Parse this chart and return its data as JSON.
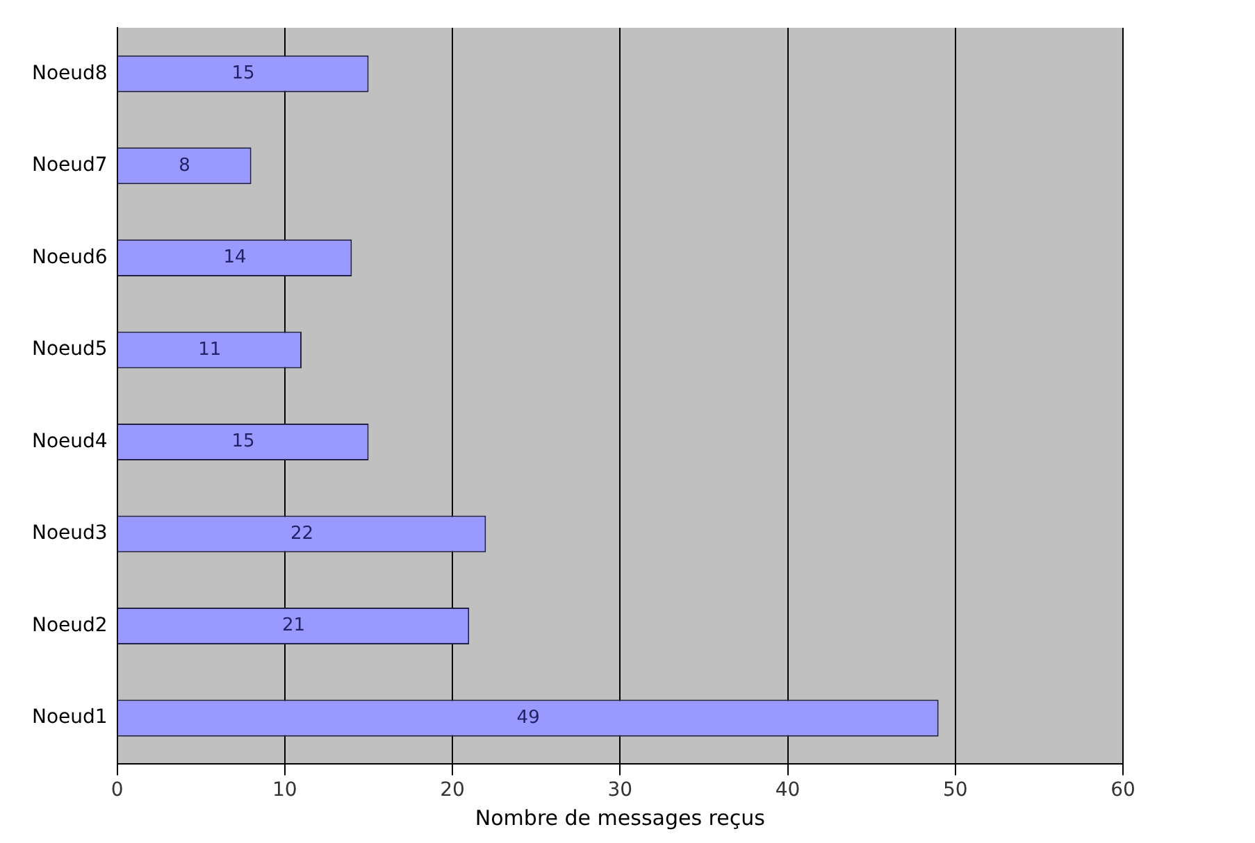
{
  "chart_data": {
    "type": "bar",
    "orientation": "horizontal",
    "xlabel": "Nombre de messages reçus",
    "categories": [
      "Noeud8",
      "Noeud7",
      "Noeud6",
      "Noeud5",
      "Noeud4",
      "Noeud3",
      "Noeud2",
      "Noeud1"
    ],
    "values": [
      15,
      8,
      14,
      11,
      15,
      22,
      21,
      49
    ],
    "color": "#9999ff",
    "xlim": [
      0,
      60
    ],
    "xticks": [
      0,
      10,
      20,
      30,
      40,
      50,
      60
    ],
    "grid": "x",
    "data_labels": true,
    "legend": false
  }
}
